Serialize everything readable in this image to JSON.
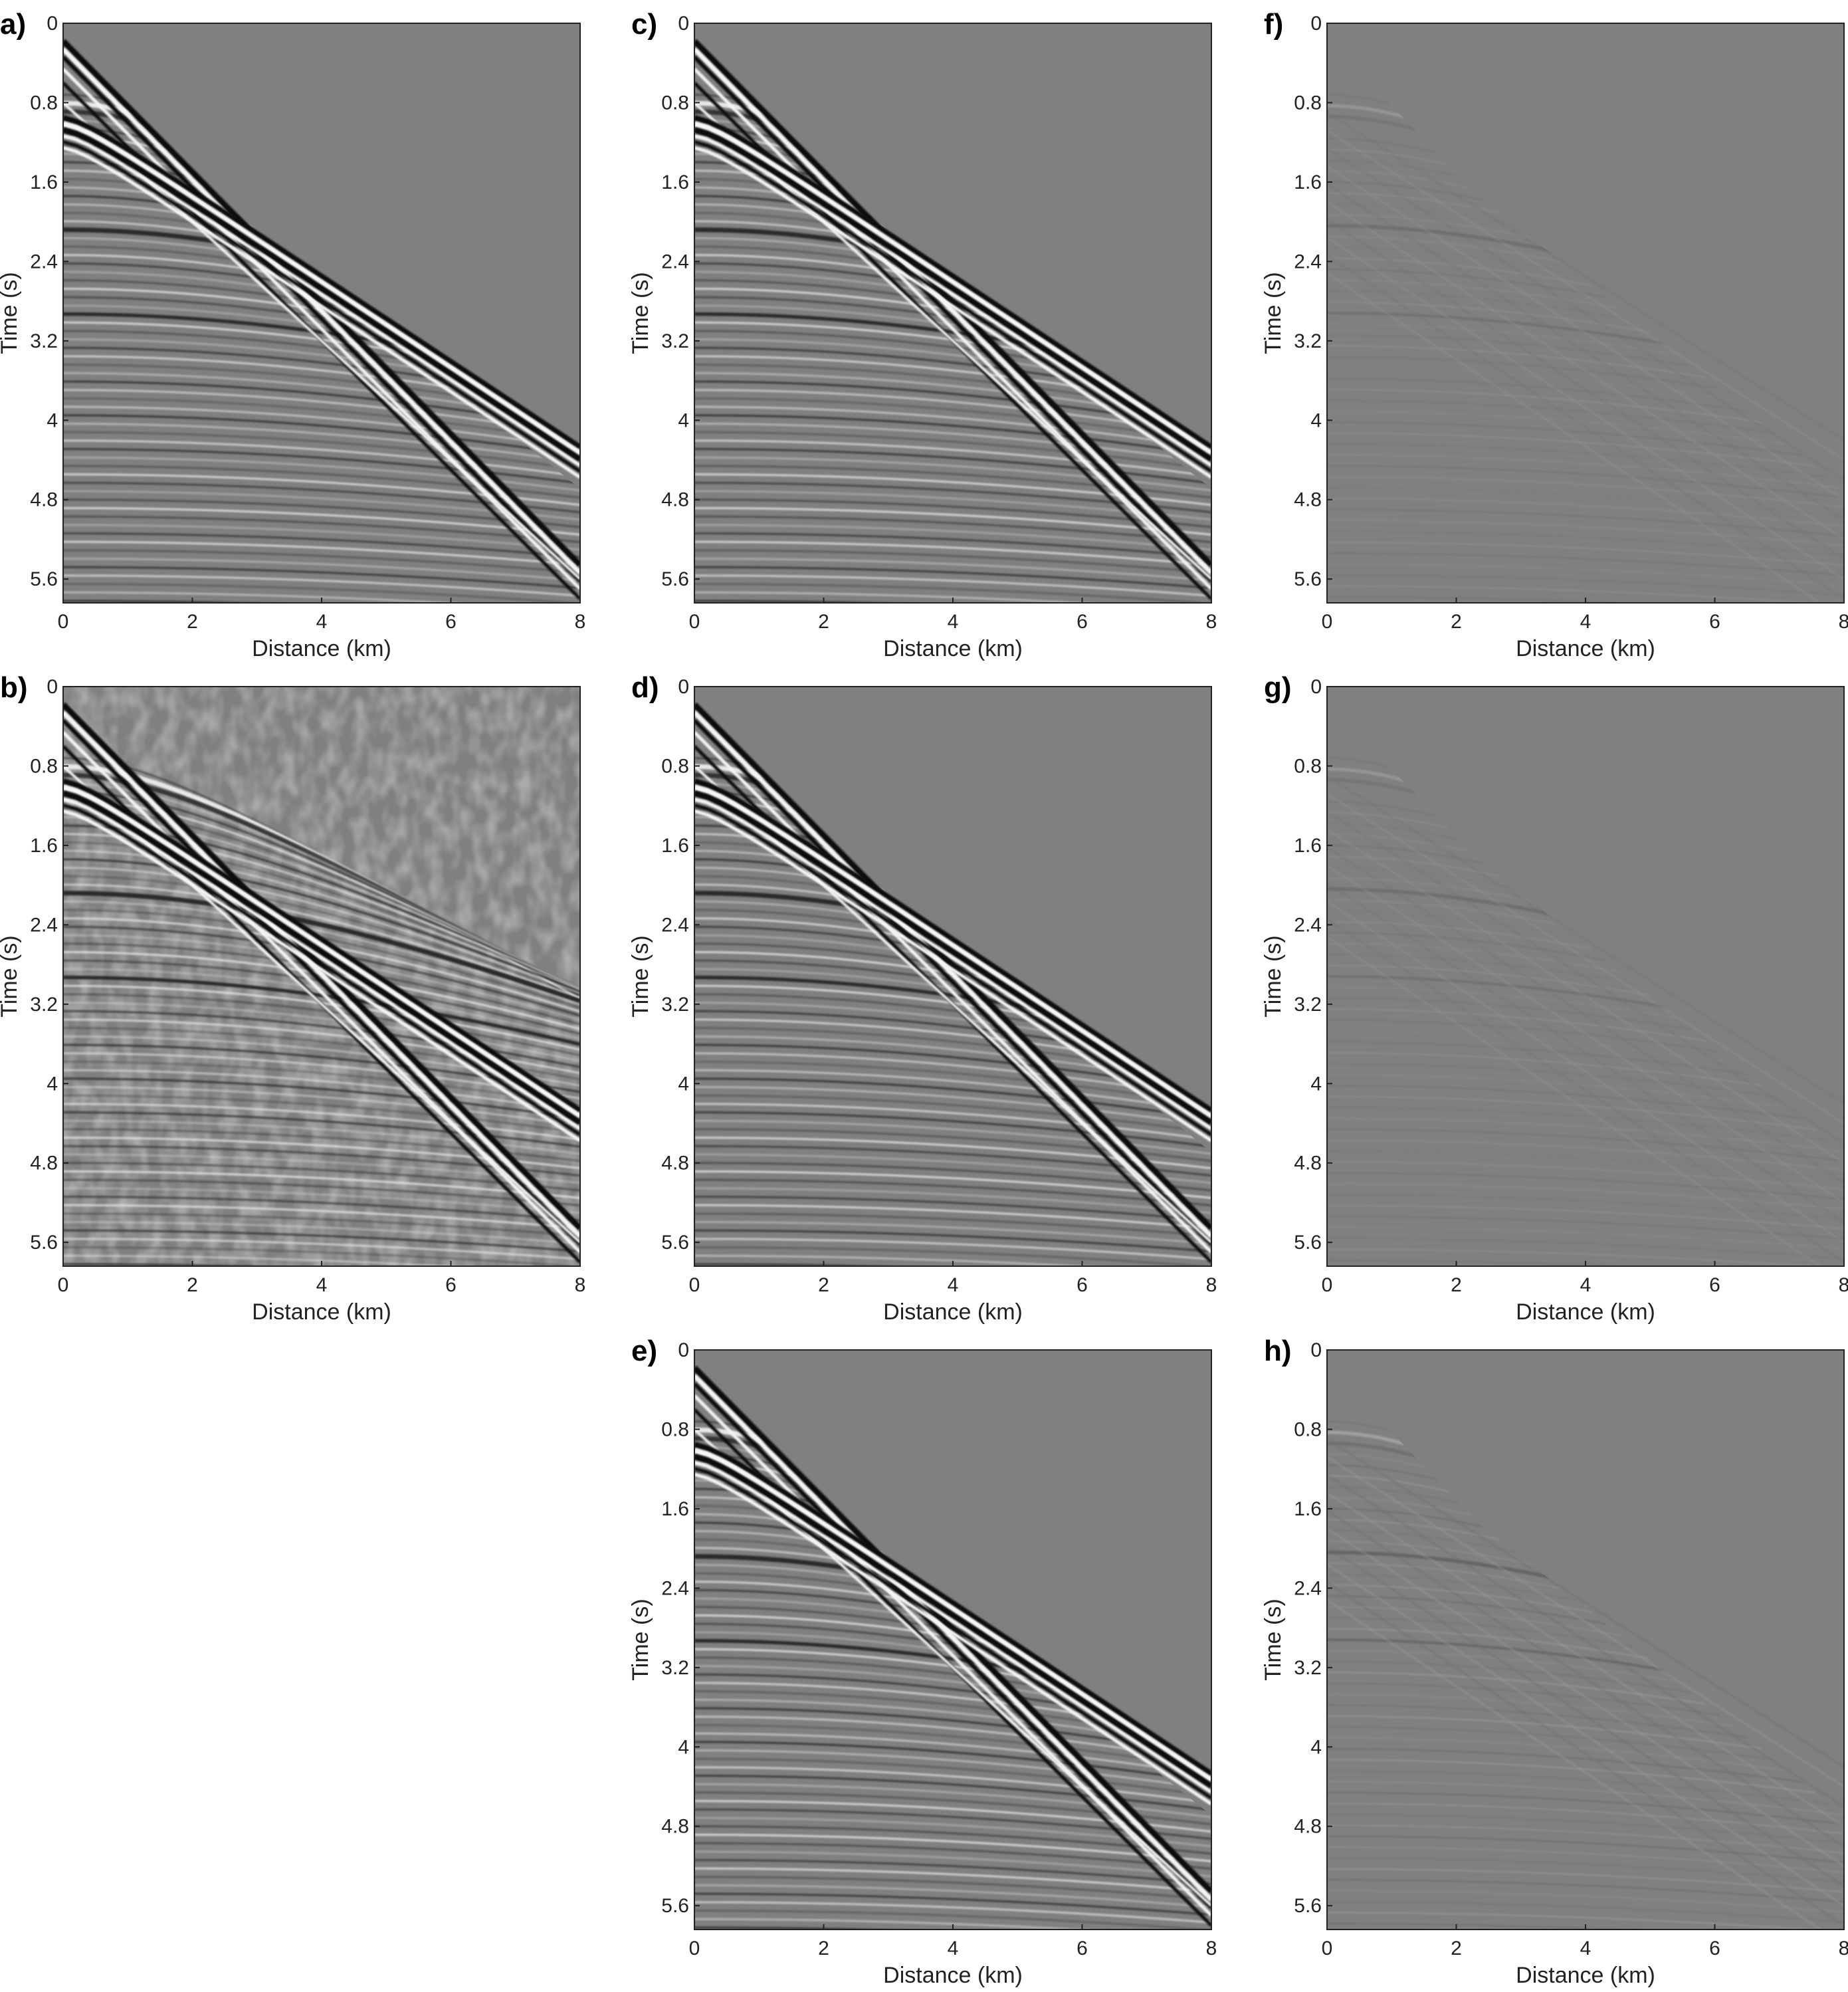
{
  "colors": {
    "background_gray": "#808080",
    "frame": "#222222"
  },
  "axis": {
    "xlabel": "Distance (km)",
    "ylabel": "Time (s)",
    "xticks": [
      0,
      2,
      4,
      6,
      8
    ],
    "yticks": [
      0,
      0.8,
      1.6,
      2.4,
      3.2,
      4,
      4.8,
      5.6
    ],
    "xtick_labels": [
      "0",
      "2",
      "4",
      "6",
      "8"
    ],
    "ytick_labels": [
      "0",
      "0.8",
      "1.6",
      "2.4",
      "3.2",
      "4",
      "4.8",
      "5.6"
    ]
  },
  "chart_data": [
    {
      "id": "a",
      "panel_label": "a)",
      "type": "heatmap",
      "style": "clean",
      "xlim": [
        0,
        8
      ],
      "ylim": [
        0,
        5.84
      ],
      "xlabel": "Distance (km)",
      "ylabel": "Time (s)"
    },
    {
      "id": "b",
      "panel_label": "b)",
      "type": "heatmap",
      "style": "noisy",
      "xlim": [
        0,
        8
      ],
      "ylim": [
        0,
        5.84
      ],
      "xlabel": "Distance (km)",
      "ylabel": "Time (s)"
    },
    {
      "id": "c",
      "panel_label": "c)",
      "type": "heatmap",
      "style": "clean",
      "xlim": [
        0,
        8
      ],
      "ylim": [
        0,
        5.84
      ],
      "xlabel": "Distance (km)",
      "ylabel": "Time (s)"
    },
    {
      "id": "d",
      "panel_label": "d)",
      "type": "heatmap",
      "style": "clean",
      "xlim": [
        0,
        8
      ],
      "ylim": [
        0,
        5.84
      ],
      "xlabel": "Distance (km)",
      "ylabel": "Time (s)"
    },
    {
      "id": "e",
      "panel_label": "e)",
      "type": "heatmap",
      "style": "clean",
      "xlim": [
        0,
        8
      ],
      "ylim": [
        0,
        5.84
      ],
      "xlabel": "Distance (km)",
      "ylabel": "Time (s)"
    },
    {
      "id": "f",
      "panel_label": "f)",
      "type": "heatmap",
      "style": "residual",
      "xlim": [
        0,
        8
      ],
      "ylim": [
        0,
        5.84
      ],
      "xlabel": "Distance (km)",
      "ylabel": "Time (s)"
    },
    {
      "id": "g",
      "panel_label": "g)",
      "type": "heatmap",
      "style": "residual",
      "xlim": [
        0,
        8
      ],
      "ylim": [
        0,
        5.84
      ],
      "xlabel": "Distance (km)",
      "ylabel": "Time (s)"
    },
    {
      "id": "h",
      "panel_label": "h)",
      "type": "heatmap",
      "style": "residual",
      "xlim": [
        0,
        8
      ],
      "ylim": [
        0,
        5.84
      ],
      "xlabel": "Distance (km)",
      "ylabel": "Time (s)"
    }
  ]
}
